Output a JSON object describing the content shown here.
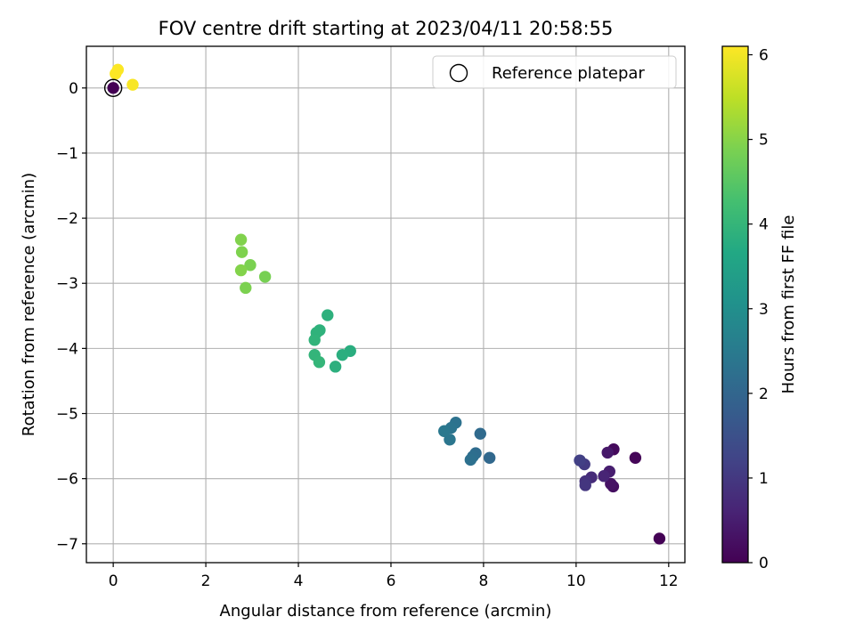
{
  "chart_data": {
    "type": "scatter",
    "title": "FOV centre drift starting at 2023/04/11 20:58:55",
    "xlabel": "Angular distance from reference (arcmin)",
    "ylabel": "Rotation from reference (arcmin)",
    "xlim": [
      -0.58,
      12.35
    ],
    "ylim": [
      -7.29,
      0.64
    ],
    "xticks": [
      0,
      2,
      4,
      6,
      8,
      10,
      12
    ],
    "yticks": [
      0,
      -1,
      -2,
      -3,
      -4,
      -5,
      -6,
      -7
    ],
    "xtick_labels": [
      "0",
      "2",
      "4",
      "6",
      "8",
      "10",
      "12"
    ],
    "ytick_labels": [
      "0",
      "−1",
      "−2",
      "−3",
      "−4",
      "−5",
      "−6",
      "−7"
    ],
    "grid": true,
    "legend_position": "top-right",
    "legend": {
      "label": "Reference platepar",
      "marker": "hollow circle"
    },
    "reference_point": {
      "x": 0,
      "y": 0
    },
    "colorbar": {
      "label": "Hours from first FF file",
      "colormap": "viridis",
      "range": [
        0,
        6.1
      ],
      "ticks": [
        0,
        1,
        2,
        3,
        4,
        5,
        6
      ],
      "tick_labels": [
        "0",
        "1",
        "2",
        "3",
        "4",
        "5",
        "6"
      ]
    },
    "points": [
      {
        "x": 11.8,
        "y": -6.92,
        "c": 0.02
      },
      {
        "x": 11.28,
        "y": -5.68,
        "c": 0.08
      },
      {
        "x": 10.81,
        "y": -5.55,
        "c": 0.15
      },
      {
        "x": 10.8,
        "y": -6.12,
        "c": 0.22
      },
      {
        "x": 10.75,
        "y": -6.08,
        "c": 0.3
      },
      {
        "x": 10.68,
        "y": -5.6,
        "c": 0.4
      },
      {
        "x": 10.72,
        "y": -5.89,
        "c": 0.5
      },
      {
        "x": 10.6,
        "y": -5.96,
        "c": 0.62
      },
      {
        "x": 10.33,
        "y": -5.98,
        "c": 0.75
      },
      {
        "x": 10.2,
        "y": -6.04,
        "c": 0.85
      },
      {
        "x": 10.2,
        "y": -6.1,
        "c": 0.95
      },
      {
        "x": 10.18,
        "y": -5.78,
        "c": 1.05
      },
      {
        "x": 10.08,
        "y": -5.72,
        "c": 1.15
      },
      {
        "x": 8.13,
        "y": -5.68,
        "c": 2.05
      },
      {
        "x": 7.93,
        "y": -5.31,
        "c": 2.1
      },
      {
        "x": 7.83,
        "y": -5.61,
        "c": 2.15
      },
      {
        "x": 7.77,
        "y": -5.66,
        "c": 2.2
      },
      {
        "x": 7.72,
        "y": -5.71,
        "c": 2.25
      },
      {
        "x": 7.4,
        "y": -5.14,
        "c": 2.3
      },
      {
        "x": 7.3,
        "y": -5.22,
        "c": 2.35
      },
      {
        "x": 7.27,
        "y": -5.4,
        "c": 2.4
      },
      {
        "x": 7.15,
        "y": -5.27,
        "c": 2.45
      },
      {
        "x": 5.12,
        "y": -4.04,
        "c": 3.8
      },
      {
        "x": 4.95,
        "y": -4.1,
        "c": 3.82
      },
      {
        "x": 4.8,
        "y": -4.28,
        "c": 3.85
      },
      {
        "x": 4.63,
        "y": -3.49,
        "c": 3.88
      },
      {
        "x": 4.46,
        "y": -3.72,
        "c": 3.9
      },
      {
        "x": 4.39,
        "y": -3.76,
        "c": 3.92
      },
      {
        "x": 4.35,
        "y": -3.87,
        "c": 3.95
      },
      {
        "x": 4.35,
        "y": -4.1,
        "c": 3.98
      },
      {
        "x": 4.45,
        "y": -4.21,
        "c": 4.0
      },
      {
        "x": 3.28,
        "y": -2.9,
        "c": 4.85
      },
      {
        "x": 2.96,
        "y": -2.72,
        "c": 4.88
      },
      {
        "x": 2.86,
        "y": -3.07,
        "c": 4.9
      },
      {
        "x": 2.78,
        "y": -2.52,
        "c": 4.92
      },
      {
        "x": 2.76,
        "y": -2.33,
        "c": 4.94
      },
      {
        "x": 2.76,
        "y": -2.8,
        "c": 4.96
      },
      {
        "x": 0.42,
        "y": 0.05,
        "c": 6.05
      },
      {
        "x": 0.1,
        "y": 0.28,
        "c": 6.08
      },
      {
        "x": 0.05,
        "y": 0.22,
        "c": 6.1
      },
      {
        "x": 0.0,
        "y": 0.0,
        "c": 0.0
      }
    ]
  }
}
